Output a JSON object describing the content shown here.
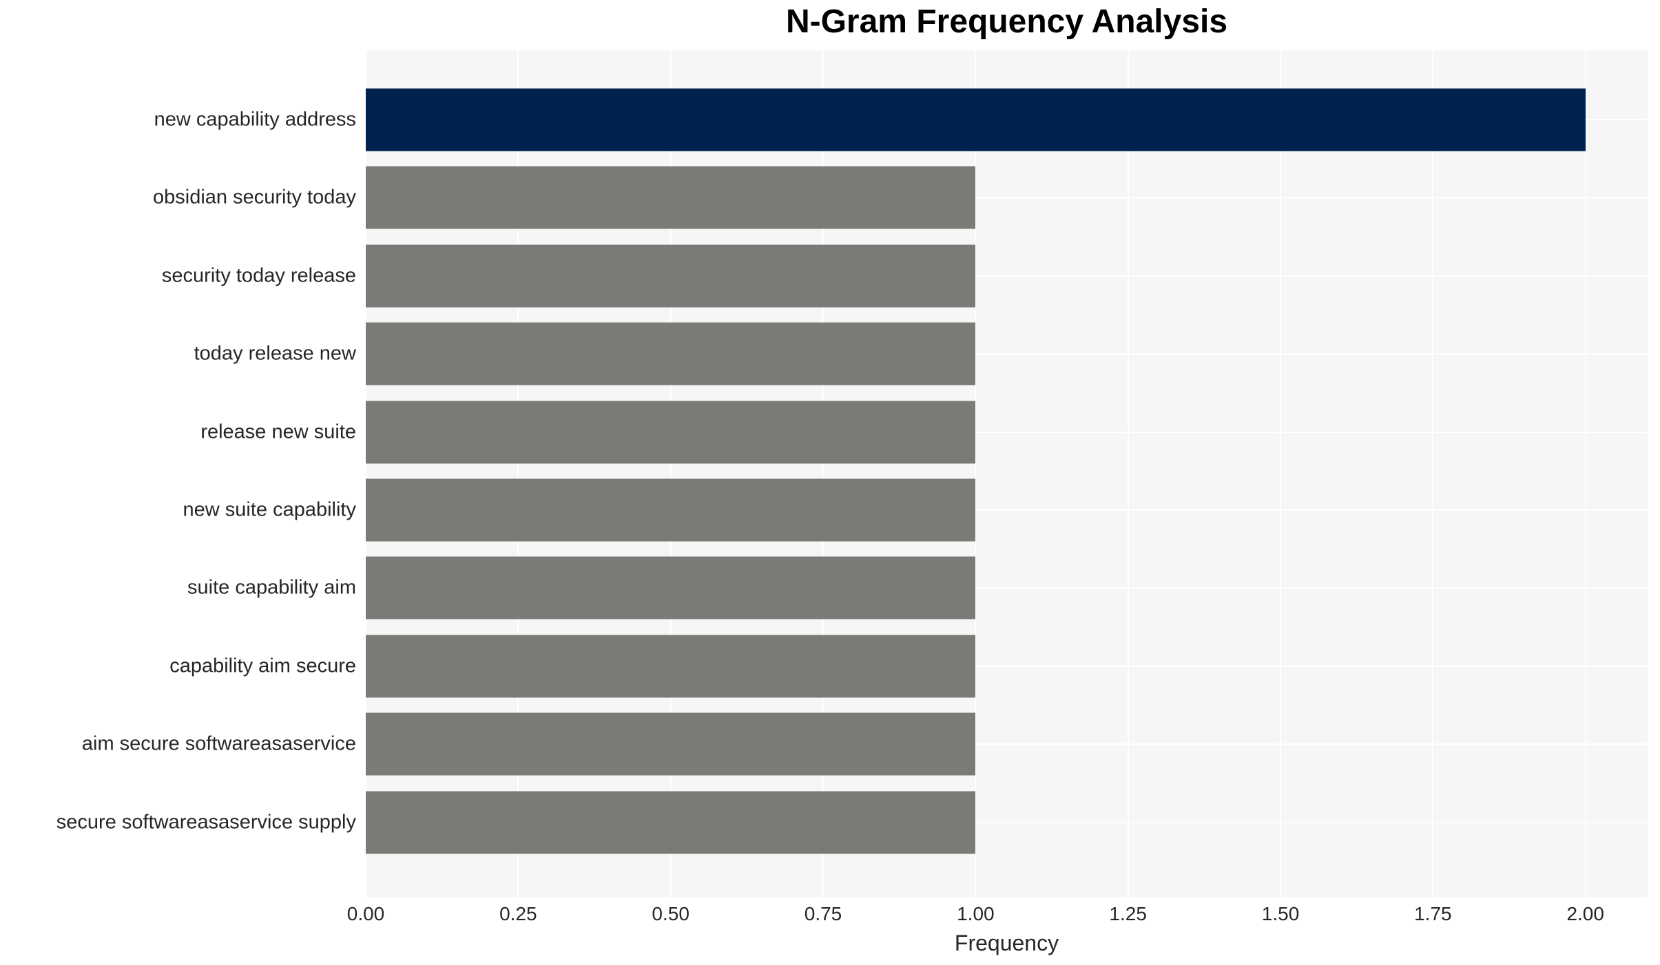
{
  "title": "N-Gram Frequency Analysis",
  "chart_data": {
    "type": "bar",
    "orientation": "horizontal",
    "title": "N-Gram Frequency Analysis",
    "xlabel": "Frequency",
    "ylabel": "",
    "categories": [
      "new capability address",
      "obsidian security today",
      "security today release",
      "today release new",
      "release new suite",
      "new suite capability",
      "suite capability aim",
      "capability aim secure",
      "aim secure softwareasaservice",
      "secure softwareasaservice supply"
    ],
    "values": [
      2,
      1,
      1,
      1,
      1,
      1,
      1,
      1,
      1,
      1
    ],
    "bar_colors": [
      "#00224e",
      "#7a7a76",
      "#7a7a76",
      "#7a7a76",
      "#7a7a76",
      "#7a7a76",
      "#7a7a76",
      "#7a7a76",
      "#7a7a76",
      "#7a7a76"
    ],
    "xlim": [
      0,
      2.102
    ],
    "xticks": [
      0.0,
      0.25,
      0.5,
      0.75,
      1.0,
      1.25,
      1.5,
      1.75,
      2.0
    ],
    "xtick_labels": [
      "0.00",
      "0.25",
      "0.50",
      "0.75",
      "1.00",
      "1.25",
      "1.50",
      "1.75",
      "2.00"
    ],
    "grid": true,
    "legend": null,
    "colors": {
      "highlight": "#00224e",
      "default": "#7a7a76",
      "plot_background": "#f6f6f6",
      "grid_line": "#ffffff",
      "tick_text": "#262626",
      "title_text": "#000000"
    }
  }
}
